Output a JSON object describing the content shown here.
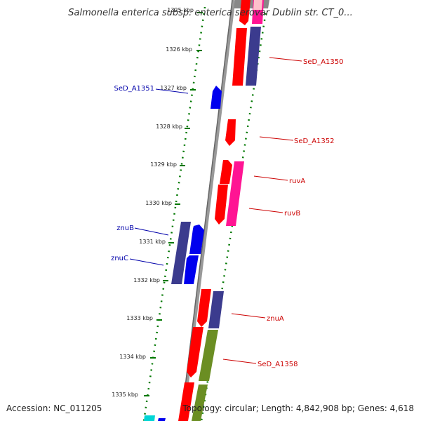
{
  "title": "Salmonella enterica subsp. enterica serovar Dublin str. CT_0...",
  "footer": {
    "accession": "Accession: NC_011205",
    "topology": "Topology: circular; Length: 4,842,908 bp; Genes: 4,618"
  },
  "ticks": [
    "1325 kbp",
    "1326 kbp",
    "1327 kbp",
    "1328 kbp",
    "1329 kbp",
    "1330 kbp",
    "1331 kbp",
    "1332 kbp",
    "1333 kbp",
    "1334 kbp",
    "1335 kbp"
  ],
  "gene_labels": {
    "left": [
      "SeD_A1351",
      "znuB",
      "znuC"
    ],
    "right": [
      "SeD_A1350",
      "SeD_A1352",
      "ruvA",
      "ruvB",
      "znuA",
      "SeD_A1358"
    ]
  },
  "colors": {
    "red": "#ff0000",
    "magenta": "#ff1493",
    "navy": "#3b3b8e",
    "blue": "#0000ee",
    "olive": "#6b8e23",
    "cyan": "#00d5d5",
    "pink": "#ffc0cb",
    "tick": "#007700",
    "backbone": "#888888",
    "label_left": "#0000aa",
    "label_right": "#cc0000"
  }
}
